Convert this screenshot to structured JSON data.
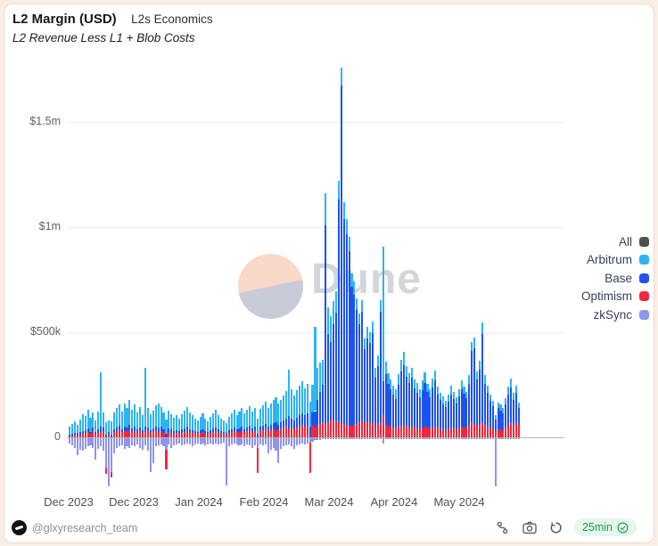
{
  "header": {
    "title": "L2 Margin (USD)",
    "tag": "L2s Economics",
    "subtitle": "L2 Revenue Less L1 + Blob Costs"
  },
  "watermark": {
    "text": "Dune"
  },
  "chart_data": {
    "type": "bar",
    "stacked": true,
    "unit": "USD thousands",
    "grid": true,
    "legend_position": "right",
    "ylim": [
      -260,
      1800
    ],
    "y_ticks": [
      {
        "label": "$1.5m",
        "value": 1500
      },
      {
        "label": "$1m",
        "value": 1000
      },
      {
        "label": "$500k",
        "value": 500
      },
      {
        "label": "0",
        "value": 0
      }
    ],
    "x_tick_labels": [
      "Dec 2023",
      "Dec 2023",
      "Jan 2024",
      "Feb 2024",
      "Mar 2024",
      "Apr 2024",
      "May 2024"
    ],
    "series": [
      {
        "name": "All",
        "color": "#4f4f4f",
        "values": []
      },
      {
        "name": "Arbitrum",
        "color": "#2eb3f3",
        "values": [
          35,
          45,
          55,
          40,
          60,
          80,
          70,
          90,
          65,
          75,
          55,
          85,
          260,
          75,
          60,
          55,
          65,
          80,
          90,
          100,
          85,
          110,
          95,
          120,
          90,
          105,
          80,
          95,
          70,
          280,
          90,
          75,
          85,
          100,
          115,
          95,
          80,
          70,
          85,
          75,
          65,
          70,
          60,
          75,
          85,
          95,
          80,
          70,
          60,
          55,
          65,
          75,
          60,
          50,
          65,
          75,
          85,
          70,
          60,
          55,
          45,
          65,
          75,
          85,
          70,
          80,
          90,
          75,
          85,
          95,
          80,
          90,
          75,
          85,
          95,
          105,
          90,
          100,
          110,
          120,
          100,
          110,
          120,
          130,
          220,
          140,
          120,
          130,
          140,
          150,
          130,
          140,
          120,
          130,
          400,
          150,
          140,
          120,
          150,
          130,
          120,
          110,
          100,
          90,
          85,
          80,
          75,
          70,
          65,
          60,
          55,
          50,
          55,
          50,
          55,
          50,
          55,
          45,
          50,
          55,
          640,
          60,
          50,
          45,
          40,
          45,
          50,
          55,
          60,
          50,
          45,
          50,
          40,
          45,
          40,
          45,
          50,
          40,
          35,
          40,
          45,
          35,
          30,
          35,
          30,
          35,
          40,
          35,
          30,
          35,
          40,
          35,
          30,
          40,
          45,
          50,
          40,
          45,
          55,
          40,
          35,
          30,
          25,
          20,
          25,
          30,
          25,
          30,
          35,
          40,
          30,
          35,
          25
        ]
      },
      {
        "name": "Base",
        "color": "#1e52f0",
        "values": [
          8,
          10,
          12,
          8,
          14,
          15,
          12,
          18,
          12,
          15,
          10,
          18,
          25,
          15,
          12,
          10,
          12,
          15,
          18,
          20,
          15,
          22,
          18,
          25,
          18,
          20,
          15,
          20,
          14,
          25,
          20,
          15,
          18,
          22,
          20,
          20,
          16,
          15,
          18,
          15,
          12,
          14,
          12,
          15,
          18,
          20,
          16,
          14,
          12,
          10,
          14,
          16,
          12,
          10,
          14,
          16,
          18,
          15,
          12,
          10,
          10,
          14,
          16,
          18,
          15,
          17,
          20,
          16,
          18,
          22,
          18,
          20,
          16,
          20,
          22,
          25,
          20,
          24,
          28,
          35,
          25,
          30,
          35,
          40,
          60,
          45,
          40,
          50,
          55,
          60,
          55,
          60,
          50,
          60,
          80,
          120,
          150,
          180,
          950,
          420,
          380,
          460,
          520,
          1060,
          1610,
          980,
          910,
          830,
          660,
          620,
          540,
          470,
          520,
          350,
          400,
          380,
          420,
          230,
          280,
          530,
          160,
          240,
          200,
          180,
          160,
          140,
          200,
          260,
          290,
          240,
          210,
          230,
          190,
          170,
          150,
          180,
          210,
          170,
          150,
          190,
          220,
          160,
          140,
          120,
          110,
          130,
          160,
          140,
          120,
          150,
          180,
          160,
          140,
          200,
          340,
          360,
          220,
          260,
          420,
          200,
          160,
          130,
          110,
          60,
          100,
          90,
          80,
          110,
          150,
          170,
          120,
          140,
          75
        ]
      },
      {
        "name": "Optimism",
        "color": "#f1283b",
        "values": [
          6,
          8,
          10,
          12,
          10,
          15,
          20,
          25,
          15,
          30,
          15,
          20,
          25,
          30,
          -30,
          15,
          -25,
          25,
          30,
          35,
          25,
          30,
          28,
          35,
          25,
          30,
          22,
          28,
          20,
          25,
          28,
          20,
          25,
          30,
          25,
          30,
          22,
          -95,
          25,
          22,
          18,
          20,
          16,
          22,
          26,
          30,
          24,
          20,
          18,
          15,
          20,
          24,
          18,
          15,
          20,
          25,
          28,
          22,
          18,
          15,
          12,
          20,
          24,
          28,
          22,
          26,
          30,
          24,
          28,
          32,
          26,
          30,
          -120,
          30,
          34,
          38,
          30,
          35,
          40,
          35,
          35,
          40,
          45,
          50,
          40,
          45,
          40,
          45,
          50,
          55,
          50,
          55,
          -145,
          60,
          45,
          60,
          65,
          70,
          60,
          70,
          75,
          80,
          75,
          70,
          65,
          60,
          55,
          55,
          55,
          60,
          65,
          70,
          78,
          70,
          72,
          70,
          74,
          55,
          60,
          68,
          105,
          60,
          55,
          50,
          45,
          42,
          50,
          55,
          55,
          50,
          48,
          52,
          45,
          42,
          40,
          45,
          50,
          45,
          42,
          48,
          52,
          45,
          40,
          38,
          35,
          40,
          45,
          42,
          40,
          45,
          50,
          48,
          45,
          55,
          70,
          65,
          55,
          60,
          70,
          55,
          50,
          45,
          40,
          25,
          40,
          38,
          35,
          45,
          55,
          68,
          60,
          72,
          65
        ]
      },
      {
        "name": "zkSync",
        "color": "#8f94ef",
        "values": [
          -25,
          -35,
          -45,
          -80,
          -55,
          -60,
          -50,
          -40,
          -35,
          -45,
          -100,
          -50,
          -40,
          -60,
          -140,
          -230,
          -160,
          -70,
          -45,
          -40,
          -35,
          -50,
          -40,
          -45,
          -35,
          -40,
          -30,
          -45,
          -55,
          -35,
          -60,
          -160,
          -120,
          -40,
          -35,
          -30,
          -40,
          -55,
          -30,
          -45,
          -35,
          -30,
          -25,
          -35,
          -30,
          -25,
          -30,
          -40,
          -30,
          -25,
          -30,
          -25,
          -35,
          -30,
          -25,
          -30,
          -25,
          -30,
          -25,
          -20,
          -225,
          -40,
          -30,
          -25,
          -30,
          -35,
          -30,
          -40,
          -30,
          -35,
          -45,
          -35,
          -45,
          -30,
          -35,
          -30,
          -70,
          -55,
          -45,
          -60,
          -120,
          -50,
          -40,
          -35,
          -30,
          -40,
          -50,
          -35,
          -30,
          -25,
          -30,
          -25,
          -20,
          -15,
          -10,
          -10,
          -8,
          -6,
          -5,
          -5,
          -4,
          -4,
          -3,
          -3,
          -3,
          -3,
          -3,
          -2,
          -2,
          -2,
          -2,
          -2,
          -2,
          -2,
          -2,
          -2,
          -2,
          -2,
          -2,
          -2,
          -25,
          -3,
          -3,
          -3,
          -3,
          -2,
          -2,
          -2,
          -2,
          -2,
          -2,
          -2,
          -2,
          -2,
          -2,
          -2,
          -2,
          -2,
          -2,
          -2,
          -2,
          -2,
          -2,
          -2,
          -2,
          -2,
          -2,
          -2,
          -2,
          -2,
          -2,
          -2,
          -2,
          -2,
          -2,
          -2,
          -2,
          -2,
          -2,
          -2,
          -2,
          -2,
          -2,
          -230,
          -2,
          -2,
          -2,
          -2,
          -2,
          -2,
          -2,
          -2,
          -2
        ]
      }
    ]
  },
  "footer": {
    "handle": "@glxyresearch_team",
    "refresh_badge": "25min",
    "icons": [
      "fork-icon",
      "camera-icon",
      "refresh-icon",
      "check-circle-icon"
    ]
  }
}
